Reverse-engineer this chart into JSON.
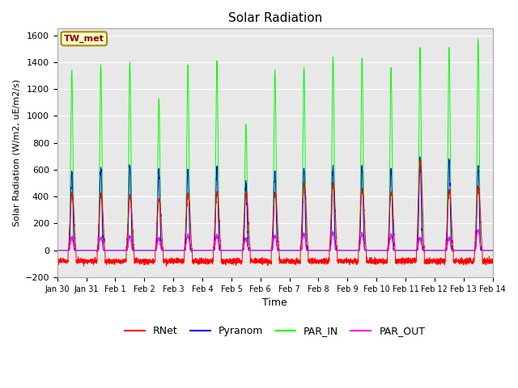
{
  "title": "Solar Radiation",
  "xlabel": "Time",
  "ylabel": "Solar Radiation (W/m2, uE/m2/s)",
  "ylim": [
    -200,
    1650
  ],
  "yticks": [
    -200,
    0,
    200,
    400,
    600,
    800,
    1000,
    1200,
    1400,
    1600
  ],
  "colors": {
    "RNet": "#ff0000",
    "Pyranom": "#0000ff",
    "PAR_IN": "#00ff00",
    "PAR_OUT": "#ff00ff"
  },
  "legend_label": "TW_met",
  "plot_bg": "#e8e8e8",
  "par_in_peaks": [
    1340,
    1380,
    1400,
    1130,
    1380,
    1410,
    940,
    1340,
    1360,
    1440,
    1430,
    1360,
    1510,
    1510,
    1570
  ],
  "pyra_peaks": [
    580,
    610,
    640,
    580,
    600,
    610,
    500,
    590,
    600,
    625,
    620,
    600,
    680,
    670,
    620
  ],
  "rnet_peaks": [
    420,
    410,
    400,
    380,
    420,
    430,
    430,
    430,
    490,
    490,
    450,
    430,
    670,
    450,
    470
  ],
  "par_out_peaks": [
    90,
    95,
    100,
    85,
    110,
    110,
    90,
    110,
    120,
    130,
    120,
    110,
    90,
    90,
    150
  ],
  "rnet_night": -80,
  "x_tick_labels": [
    "Jan 30",
    "Jan 31",
    "Feb 1",
    "Feb 2",
    "Feb 3",
    "Feb 4",
    "Feb 5",
    "Feb 6",
    "Feb 7",
    "Feb 8",
    "Feb 9",
    "Feb 10",
    "Feb 11",
    "Feb 12",
    "Feb 13",
    "Feb 14"
  ],
  "pts_per_day": 288
}
